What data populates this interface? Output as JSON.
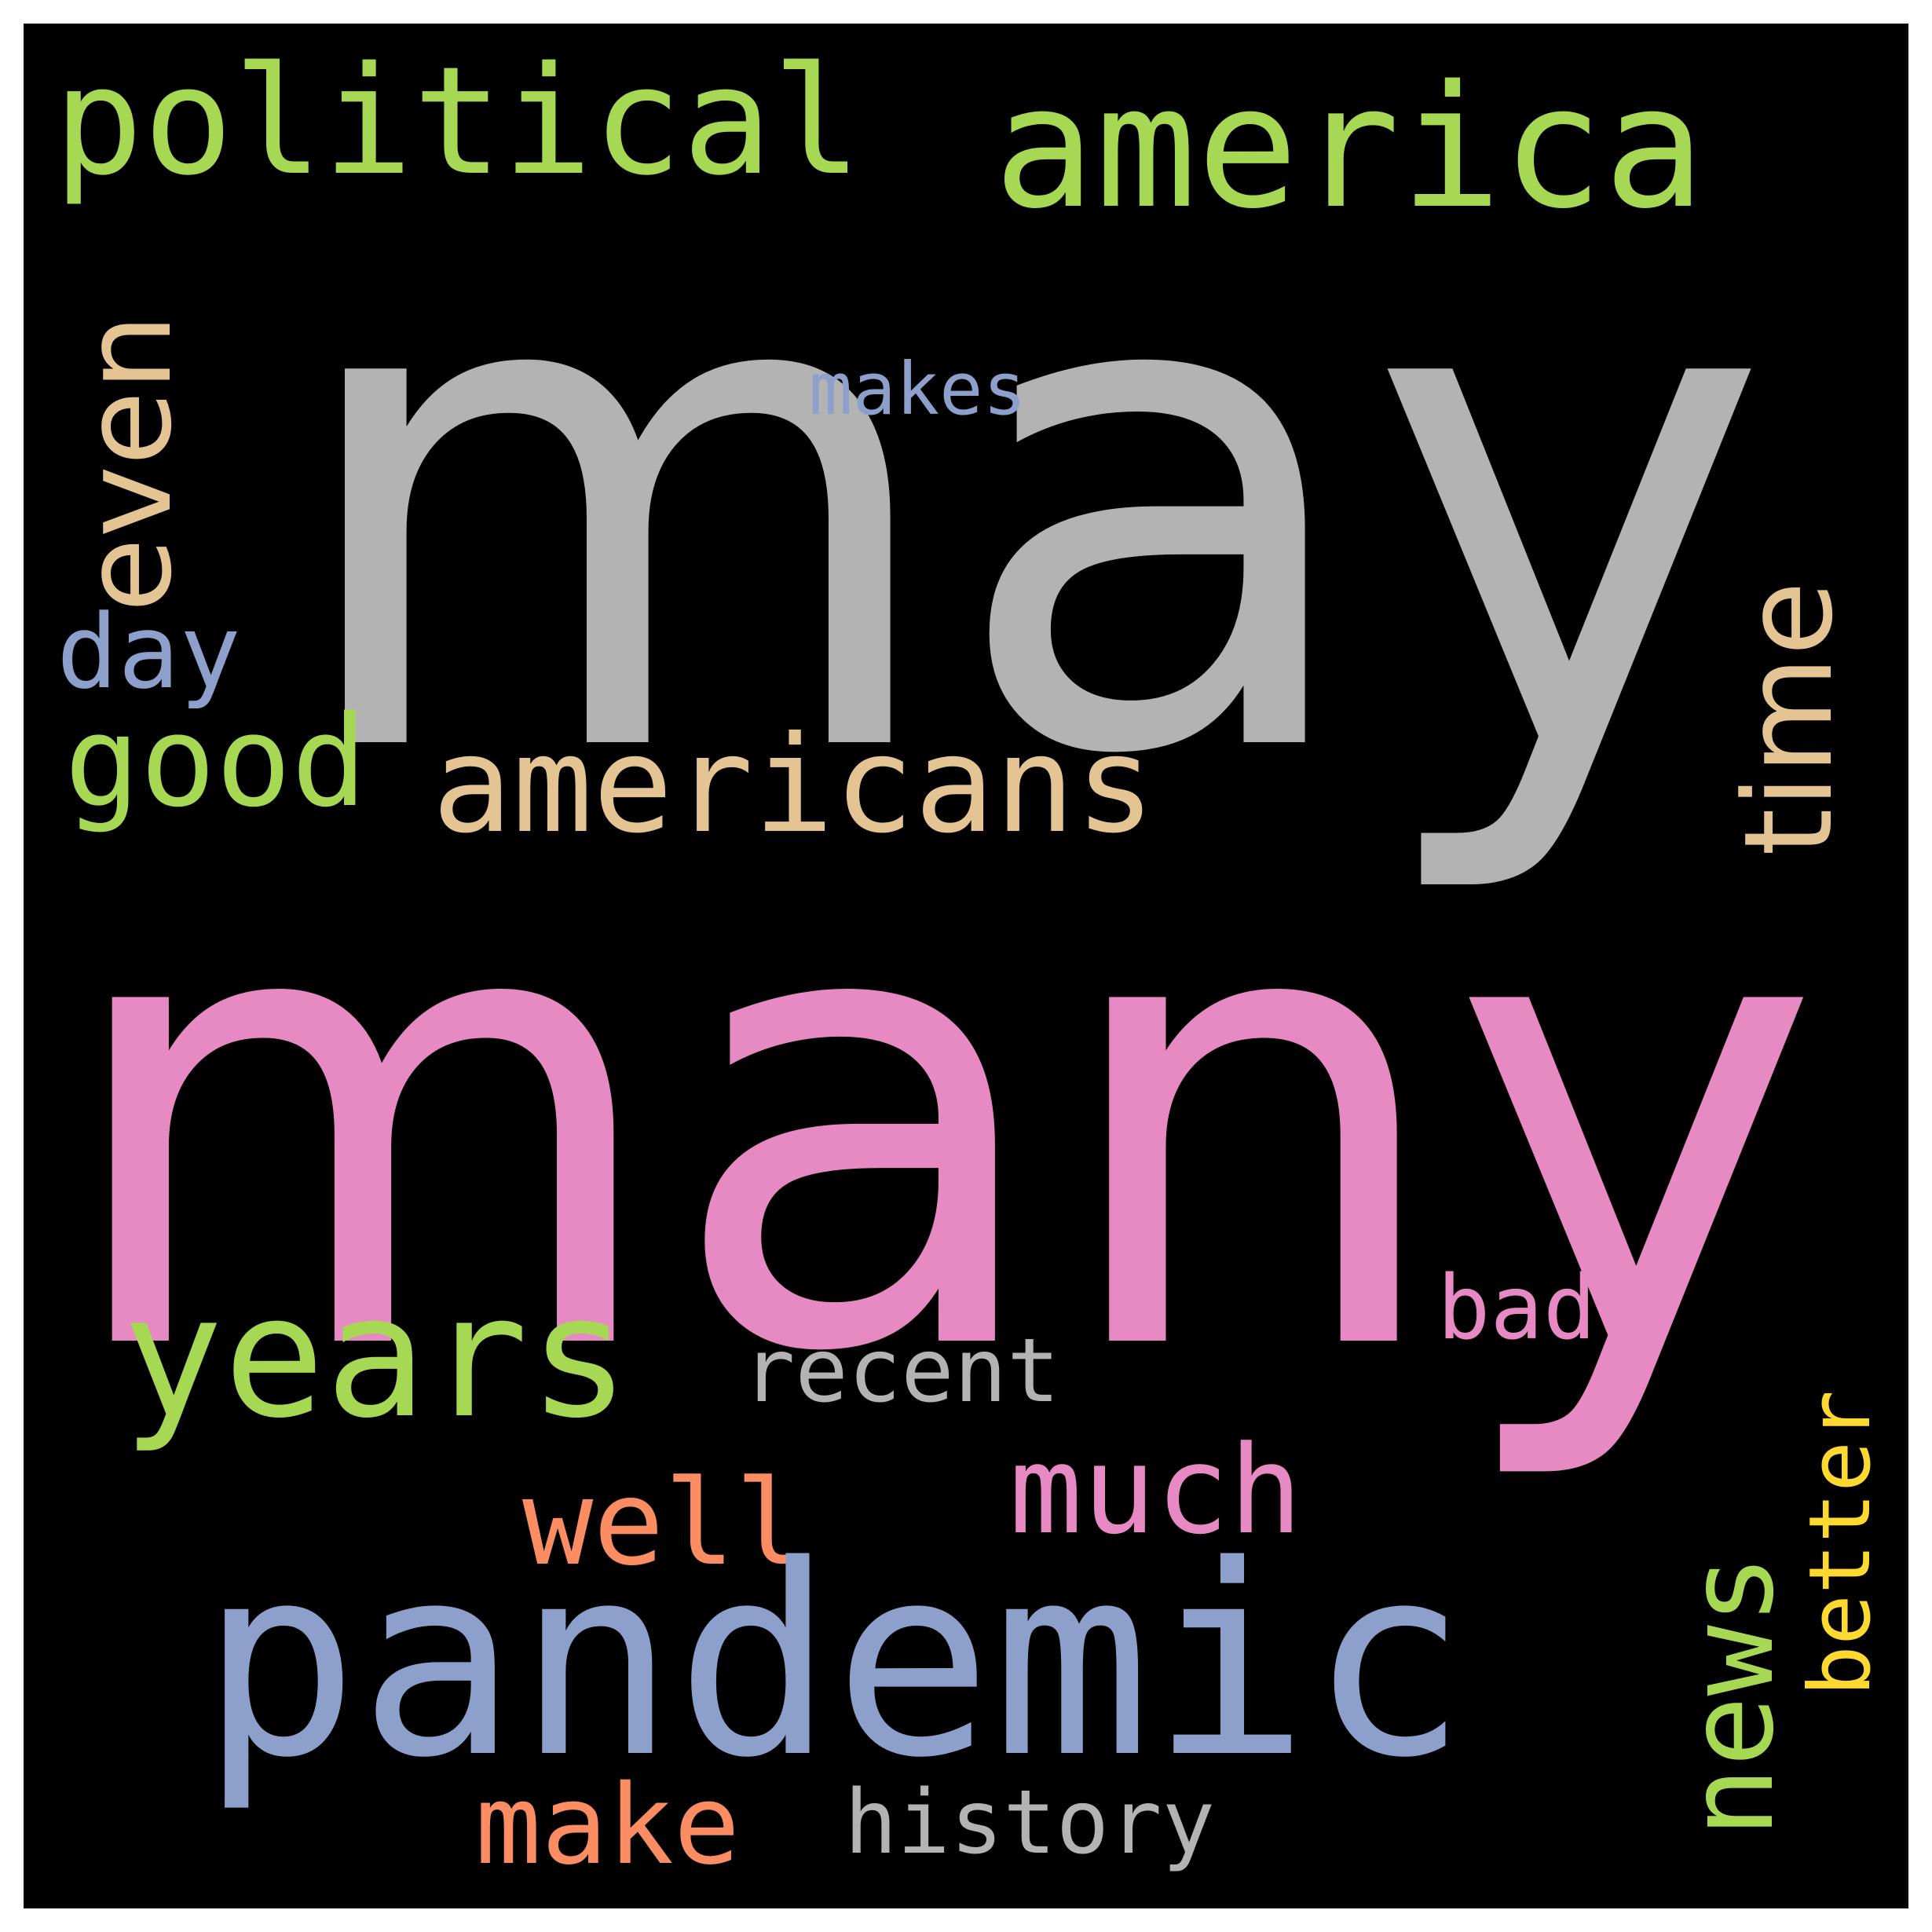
{
  "words": [
    {
      "text": "many",
      "color": "#e78ac3"
    },
    {
      "text": "may",
      "color": "#b3b3b3"
    },
    {
      "text": "america",
      "color": "#a6d854"
    },
    {
      "text": "political",
      "color": "#a6d854"
    },
    {
      "text": "even",
      "color": "#e5c494"
    },
    {
      "text": "time",
      "color": "#e5c494"
    },
    {
      "text": "day",
      "color": "#8da0cb"
    },
    {
      "text": "makes",
      "color": "#8da0cb"
    },
    {
      "text": "good",
      "color": "#a6d854"
    },
    {
      "text": "americans",
      "color": "#e5c494"
    },
    {
      "text": "years",
      "color": "#a6d854"
    },
    {
      "text": "recent",
      "color": "#b3b3b3"
    },
    {
      "text": "bad",
      "color": "#e78ac3"
    },
    {
      "text": "much",
      "color": "#e78ac3"
    },
    {
      "text": "well",
      "color": "#fc8d62"
    },
    {
      "text": "pandemic",
      "color": "#8da0cb"
    },
    {
      "text": "news",
      "color": "#a6d854"
    },
    {
      "text": "better",
      "color": "#ffd92f"
    },
    {
      "text": "make",
      "color": "#fc8d62"
    },
    {
      "text": "history",
      "color": "#b3b3b3"
    }
  ]
}
